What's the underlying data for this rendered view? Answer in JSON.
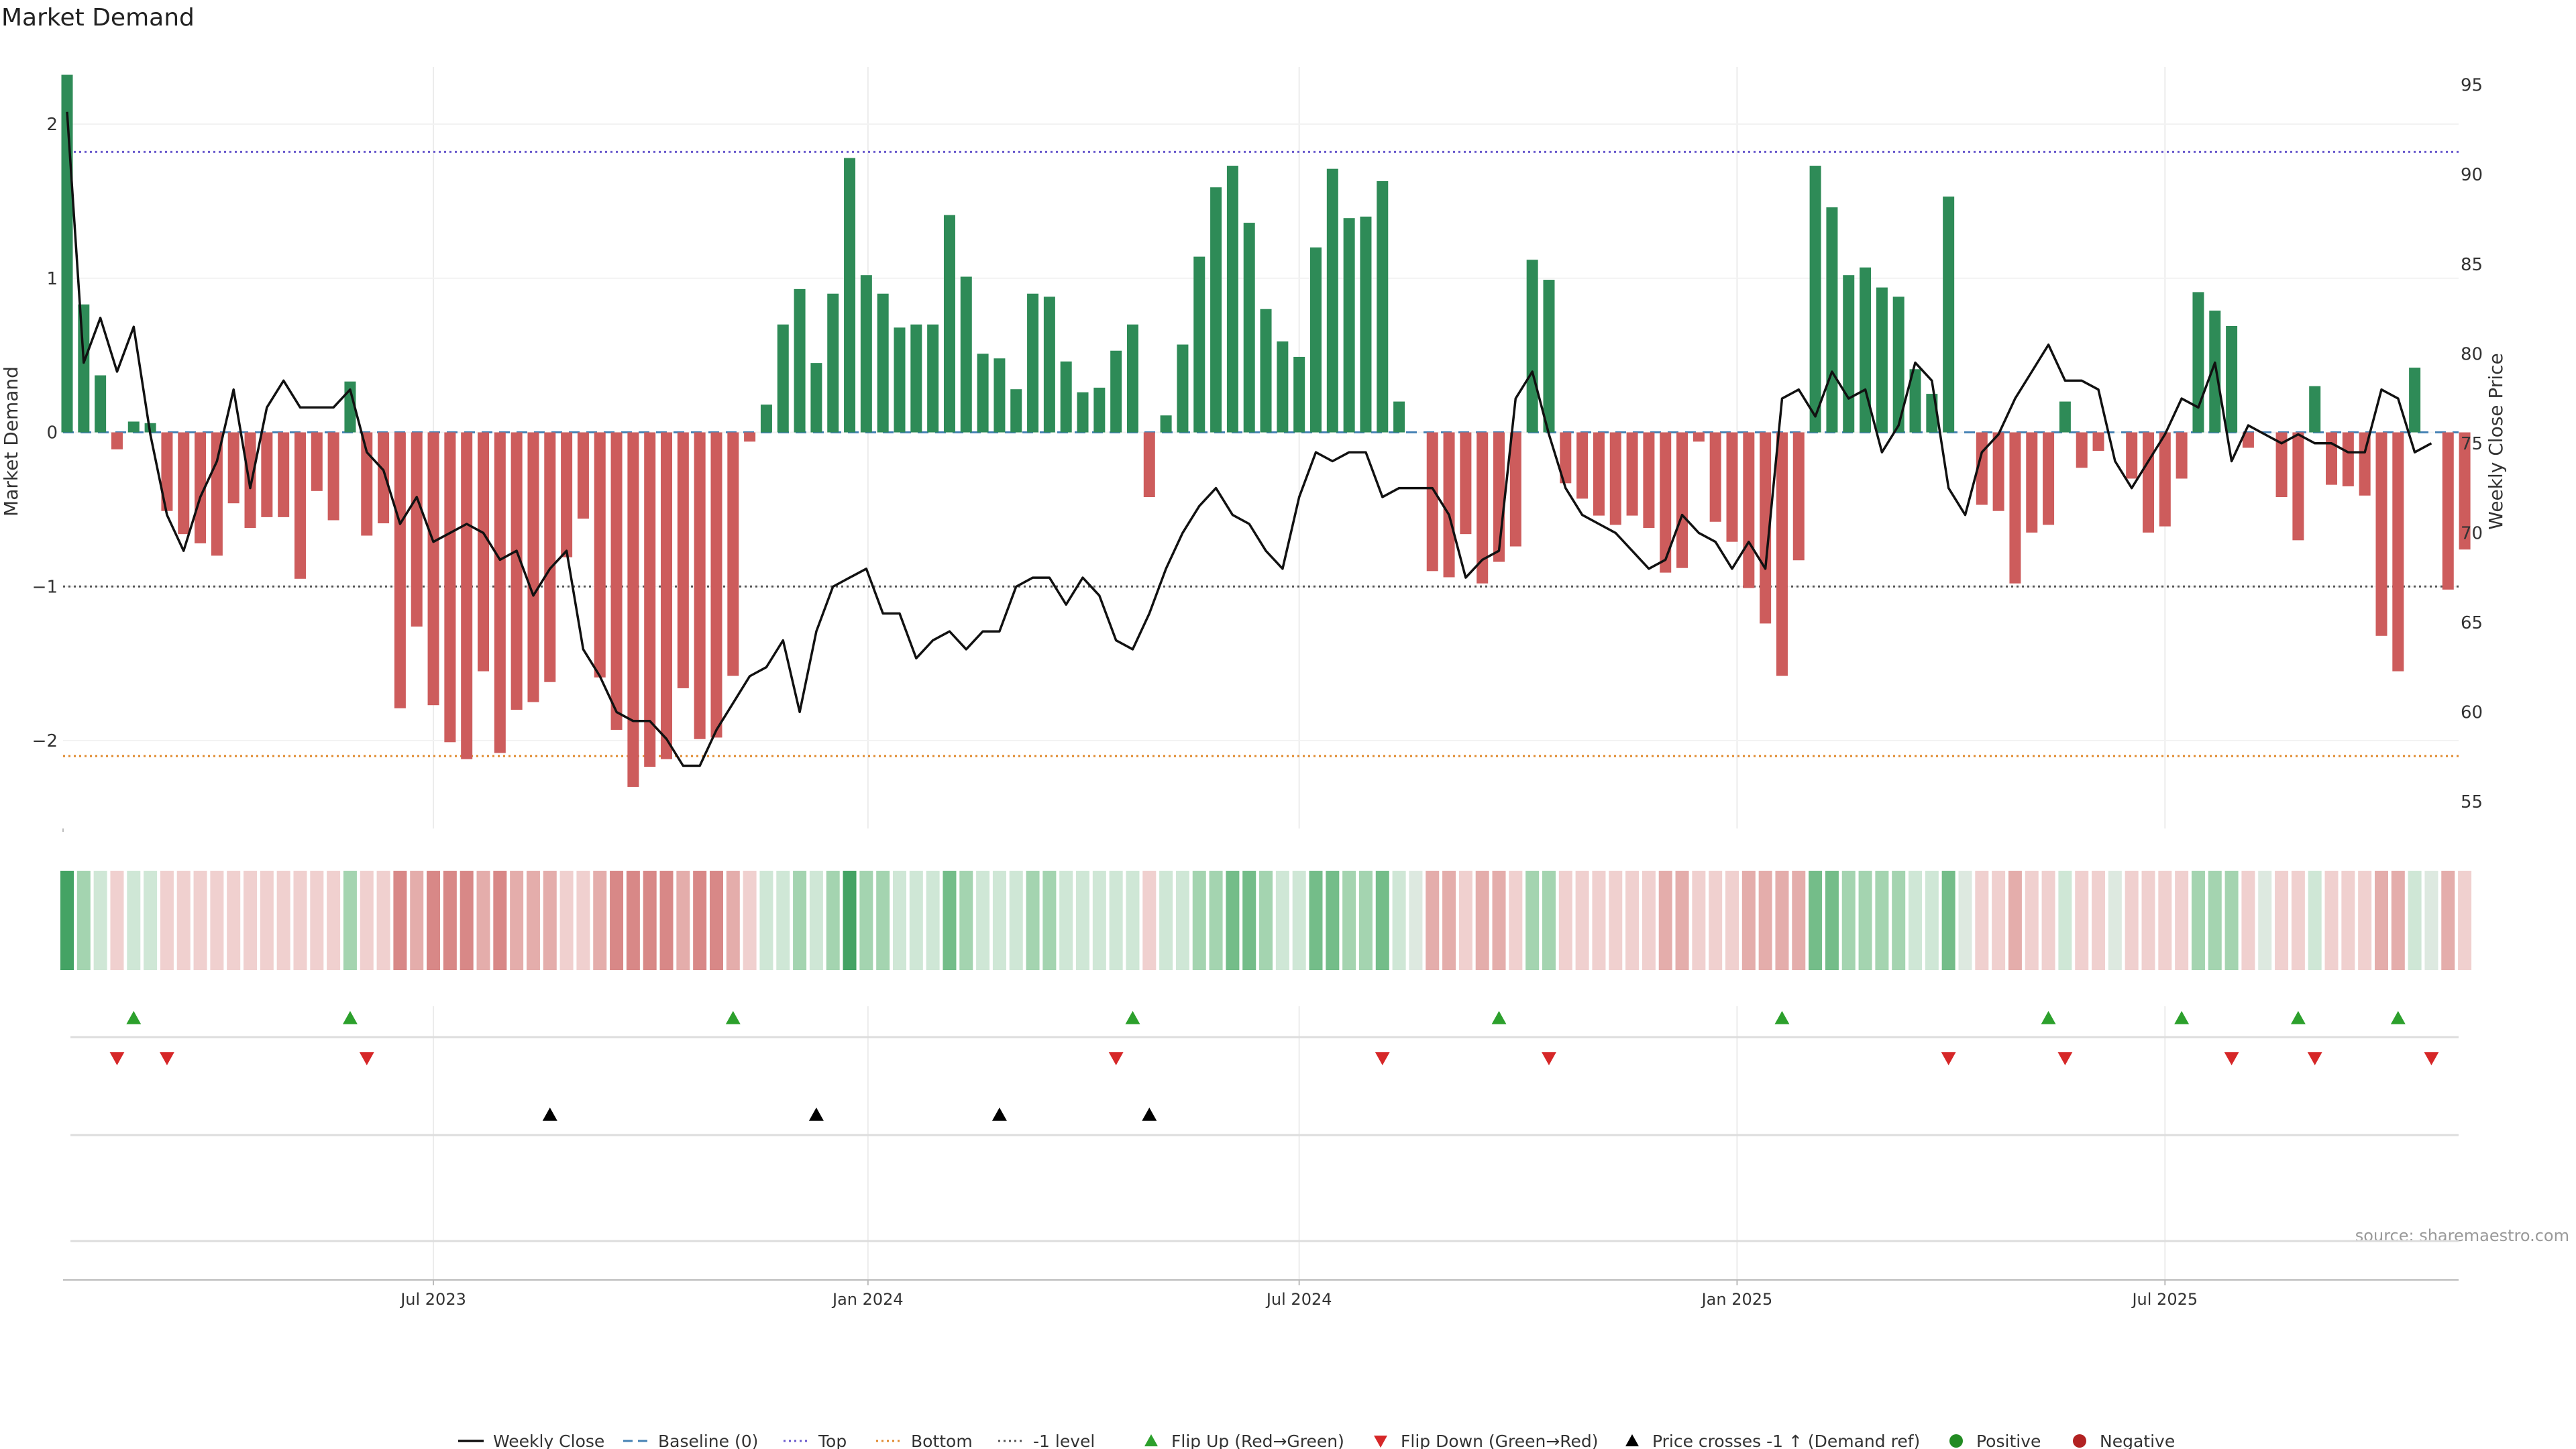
{
  "chart_data": {
    "type": "bar+line",
    "title": "Market Demand",
    "ylabel_left": "Market Demand",
    "ylabel_right": "Weekly Close Price",
    "ylim_left": [
      -2.57,
      2.37
    ],
    "ylim_right": [
      53.5,
      96.0
    ],
    "yticks_left": [
      {
        "v": 2,
        "label": "2"
      },
      {
        "v": 1,
        "label": "1"
      },
      {
        "v": 0,
        "label": "0"
      },
      {
        "v": -1,
        "label": "−1"
      },
      {
        "v": -2,
        "label": "−2"
      }
    ],
    "yticks_right": [
      95,
      90,
      85,
      80,
      75,
      70,
      65,
      60,
      55
    ],
    "xticks": [
      {
        "index": 22,
        "label": "Jul 2023"
      },
      {
        "index": 48.1,
        "label": "Jan 2024"
      },
      {
        "index": 74,
        "label": "Jul 2024"
      },
      {
        "index": 100.3,
        "label": "Jan 2025"
      },
      {
        "index": 126,
        "label": "Jul 2025"
      }
    ],
    "reference_lines": {
      "top": 1.82,
      "bottom": -2.1,
      "minus_one": -1.0,
      "baseline": 0
    },
    "demand": [
      2.32,
      0.83,
      0.37,
      -0.11,
      0.07,
      0.06,
      -0.51,
      -0.66,
      -0.72,
      -0.8,
      -0.46,
      -0.62,
      -0.55,
      -0.55,
      -0.95,
      -0.38,
      -0.57,
      0.33,
      -0.67,
      -0.59,
      -1.79,
      -1.26,
      -1.77,
      -2.01,
      -2.12,
      -1.55,
      -2.08,
      -1.8,
      -1.75,
      -1.62,
      -0.81,
      -0.56,
      -1.59,
      -1.93,
      -2.3,
      -2.17,
      -2.12,
      -1.66,
      -1.99,
      -1.98,
      -1.58,
      -0.06,
      0.18,
      0.7,
      0.93,
      0.45,
      0.9,
      1.78,
      1.02,
      0.9,
      0.68,
      0.7,
      0.7,
      1.41,
      1.01,
      0.51,
      0.48,
      0.28,
      0.9,
      0.88,
      0.46,
      0.26,
      0.29,
      0.53,
      0.7,
      -0.42,
      0.11,
      0.57,
      1.14,
      1.59,
      1.73,
      1.36,
      0.8,
      0.59,
      0.49,
      1.2,
      1.71,
      1.39,
      1.4,
      1.63,
      0.2,
      0.0,
      -0.9,
      -0.94,
      -0.66,
      -0.98,
      -0.84,
      -0.74,
      1.12,
      0.99,
      -0.33,
      -0.43,
      -0.54,
      -0.6,
      -0.54,
      -0.62,
      -0.91,
      -0.88,
      -0.06,
      -0.58,
      -0.71,
      -1.01,
      -1.24,
      -1.58,
      -0.83,
      1.73,
      1.46,
      1.02,
      1.07,
      0.94,
      0.88,
      0.41,
      0.25,
      1.53,
      0.0,
      -0.47,
      -0.51,
      -0.98,
      -0.65,
      -0.6,
      0.2,
      -0.23,
      -0.12,
      0.0,
      -0.3,
      -0.65,
      -0.61,
      -0.3,
      0.91,
      0.79,
      0.69,
      -0.1,
      0.0,
      -0.42,
      -0.7,
      0.3,
      -0.34,
      -0.35,
      -0.41,
      -1.32,
      -1.55,
      0.42,
      0.0,
      -1.02,
      -0.76
    ],
    "close": [
      93.5,
      79.5,
      82.0,
      79.0,
      81.5,
      75.5,
      71.0,
      69.0,
      72.0,
      74.0,
      78.0,
      72.5,
      77.0,
      78.5,
      77.0,
      77.0,
      77.0,
      78.0,
      74.5,
      73.5,
      70.5,
      72.0,
      69.5,
      70.0,
      70.5,
      70.0,
      68.5,
      69.0,
      66.5,
      68.0,
      69.0,
      63.5,
      62.0,
      60.0,
      59.5,
      59.5,
      58.5,
      57.0,
      57.0,
      59.0,
      60.5,
      62.0,
      62.5,
      64.0,
      60.0,
      64.5,
      67.0,
      67.5,
      68.0,
      65.5,
      65.5,
      63.0,
      64.0,
      64.5,
      63.5,
      64.5,
      64.5,
      67.0,
      67.5,
      67.5,
      66.0,
      67.5,
      66.5,
      64.0,
      63.5,
      65.5,
      68.0,
      70.0,
      71.5,
      72.5,
      71.0,
      70.5,
      69.0,
      68.0,
      72.0,
      74.5,
      74.0,
      74.5,
      74.5,
      72.0,
      72.5,
      72.5,
      72.5,
      71.0,
      67.5,
      68.5,
      69.0,
      77.5,
      79.0,
      75.5,
      72.5,
      71.0,
      70.5,
      70.0,
      69.0,
      68.0,
      68.5,
      71.0,
      70.0,
      69.5,
      68.0,
      69.5,
      68.0,
      77.5,
      78.0,
      76.5,
      79.0,
      77.5,
      78.0,
      74.5,
      76.0,
      79.5,
      78.5,
      72.5,
      71.0,
      74.5,
      75.5,
      77.5,
      79.0,
      80.5,
      78.5,
      78.5,
      78.0,
      74.0,
      72.5,
      74.0,
      75.5,
      77.5,
      77.0,
      79.5,
      74.0,
      76.0,
      75.5,
      75.0,
      75.5,
      75.0,
      75.0,
      74.5,
      74.5,
      78.0,
      77.5,
      74.5,
      75.0
    ],
    "strip_shade": [
      3,
      1,
      0,
      0,
      0,
      0,
      0,
      0,
      0,
      0,
      0,
      0,
      0,
      0,
      0,
      0,
      0,
      1,
      0,
      0,
      2,
      1,
      2,
      2,
      2,
      1,
      2,
      1,
      1,
      1,
      0,
      0,
      1,
      2,
      2,
      2,
      2,
      1,
      2,
      2,
      1,
      0,
      0,
      0,
      1,
      0,
      1,
      3,
      1,
      1,
      0,
      0,
      0,
      2,
      1,
      0,
      0,
      0,
      1,
      1,
      0,
      0,
      0,
      0,
      0,
      0,
      0,
      0,
      1,
      1,
      2,
      2,
      1,
      0,
      0,
      2,
      2,
      1,
      1,
      2,
      0,
      0,
      1,
      1,
      0,
      1,
      1,
      0,
      1,
      1,
      0,
      0,
      0,
      0,
      0,
      0,
      1,
      1,
      0,
      0,
      0,
      1,
      1,
      1,
      1,
      2,
      2,
      1,
      1,
      1,
      1,
      0,
      0,
      2,
      0,
      0,
      0,
      1,
      0,
      0,
      0,
      0,
      0,
      0,
      0,
      0,
      0,
      0,
      1,
      1,
      1,
      0,
      0,
      0,
      0,
      0,
      0,
      0,
      0,
      1,
      1,
      0,
      0,
      1,
      0
    ],
    "flip_up": [
      4,
      17,
      40,
      64,
      86,
      103,
      119,
      127,
      134,
      140
    ],
    "flip_down": [
      3,
      6,
      18,
      63,
      79,
      89,
      113,
      120,
      130,
      135,
      142
    ],
    "price_cross": [
      29,
      45,
      56,
      65
    ],
    "legend": [
      "Weekly Close",
      "Baseline (0)",
      "Top",
      "Bottom",
      "-1 level",
      "Flip Up (Red→Green)",
      "Flip Down (Green→Red)",
      "Price crosses -1 ↑ (Demand ref)",
      "Positive",
      "Negative"
    ],
    "source": "source: sharemaestro.com"
  },
  "colors": {
    "positive": "#2e8b57",
    "negative": "#cd5c5c",
    "line": "#111111",
    "baseline": "#4682b4",
    "top": "#6a5acd",
    "bottom": "#e08a2e",
    "minus_one": "#555555",
    "flip_up": "#2ca02c",
    "flip_down": "#d62728",
    "cross": "#000000",
    "legend_positive": "#228b22",
    "legend_negative": "#b22222"
  }
}
